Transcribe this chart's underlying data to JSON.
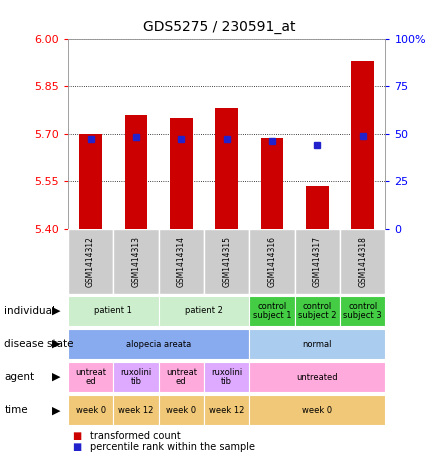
{
  "title": "GDS5275 / 230591_at",
  "samples": [
    "GSM1414312",
    "GSM1414313",
    "GSM1414314",
    "GSM1414315",
    "GSM1414316",
    "GSM1414317",
    "GSM1414318"
  ],
  "transformed_count": [
    5.7,
    5.76,
    5.75,
    5.78,
    5.685,
    5.535,
    5.93
  ],
  "percentile_rank": [
    47,
    48,
    47,
    47,
    46,
    44,
    49
  ],
  "ylim_left": [
    5.4,
    6.0
  ],
  "yticks_left": [
    5.4,
    5.55,
    5.7,
    5.85,
    6.0
  ],
  "ylim_right": [
    0,
    100
  ],
  "yticks_right": [
    0,
    25,
    50,
    75,
    100
  ],
  "bar_color": "#cc0000",
  "dot_color": "#2222cc",
  "bar_width": 0.5,
  "annotation_rows": [
    {
      "label": "individual",
      "groups": [
        {
          "span": [
            0,
            1
          ],
          "text": "patient 1",
          "color": "#cceecc"
        },
        {
          "span": [
            2,
            3
          ],
          "text": "patient 2",
          "color": "#cceecc"
        },
        {
          "span": [
            4,
            4
          ],
          "text": "control\nsubject 1",
          "color": "#44cc44"
        },
        {
          "span": [
            5,
            5
          ],
          "text": "control\nsubject 2",
          "color": "#44cc44"
        },
        {
          "span": [
            6,
            6
          ],
          "text": "control\nsubject 3",
          "color": "#44cc44"
        }
      ]
    },
    {
      "label": "disease state",
      "groups": [
        {
          "span": [
            0,
            3
          ],
          "text": "alopecia areata",
          "color": "#88aaee"
        },
        {
          "span": [
            4,
            6
          ],
          "text": "normal",
          "color": "#aaccee"
        }
      ]
    },
    {
      "label": "agent",
      "groups": [
        {
          "span": [
            0,
            0
          ],
          "text": "untreat\ned",
          "color": "#ffaadd"
        },
        {
          "span": [
            1,
            1
          ],
          "text": "ruxolini\ntib",
          "color": "#ddaaff"
        },
        {
          "span": [
            2,
            2
          ],
          "text": "untreat\ned",
          "color": "#ffaadd"
        },
        {
          "span": [
            3,
            3
          ],
          "text": "ruxolini\ntib",
          "color": "#ddaaff"
        },
        {
          "span": [
            4,
            6
          ],
          "text": "untreated",
          "color": "#ffaadd"
        }
      ]
    },
    {
      "label": "time",
      "groups": [
        {
          "span": [
            0,
            0
          ],
          "text": "week 0",
          "color": "#f0c878"
        },
        {
          "span": [
            1,
            1
          ],
          "text": "week 12",
          "color": "#f0c878"
        },
        {
          "span": [
            2,
            2
          ],
          "text": "week 0",
          "color": "#f0c878"
        },
        {
          "span": [
            3,
            3
          ],
          "text": "week 12",
          "color": "#f0c878"
        },
        {
          "span": [
            4,
            6
          ],
          "text": "week 0",
          "color": "#f0c878"
        }
      ]
    }
  ],
  "legend_items": [
    {
      "color": "#cc0000",
      "label": "transformed count"
    },
    {
      "color": "#2222cc",
      "label": "percentile rank within the sample"
    }
  ],
  "sample_bg": "#cccccc",
  "plot_bg": "#ffffff"
}
